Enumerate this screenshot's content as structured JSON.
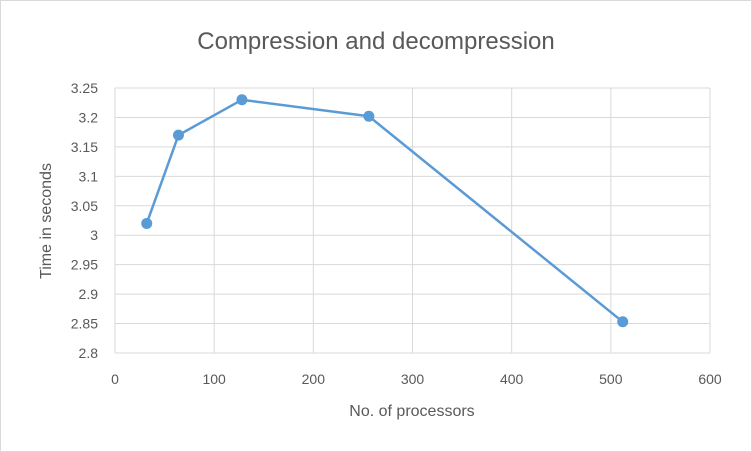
{
  "chart_data": {
    "type": "scatter",
    "title": "Compression and decompression",
    "xlabel": "No. of processors",
    "ylabel": "Time in seconds",
    "xlim": [
      0,
      600
    ],
    "ylim": [
      2.8,
      3.25
    ],
    "xticks": [
      0,
      100,
      200,
      300,
      400,
      500,
      600
    ],
    "yticks": [
      2.8,
      2.85,
      2.9,
      2.95,
      3,
      3.05,
      3.1,
      3.15,
      3.2,
      3.25
    ],
    "xtick_labels": [
      "0",
      "100",
      "200",
      "300",
      "400",
      "500",
      "600"
    ],
    "ytick_labels": [
      "2.8",
      "2.85",
      "2.9",
      "2.95",
      "3",
      "3.05",
      "3.1",
      "3.15",
      "3.2",
      "3.25"
    ],
    "grid": true,
    "series": [
      {
        "color": "#5b9bd5",
        "x": [
          32,
          64,
          128,
          256,
          512
        ],
        "y": [
          3.02,
          3.17,
          3.23,
          3.202,
          2.853
        ]
      }
    ]
  }
}
